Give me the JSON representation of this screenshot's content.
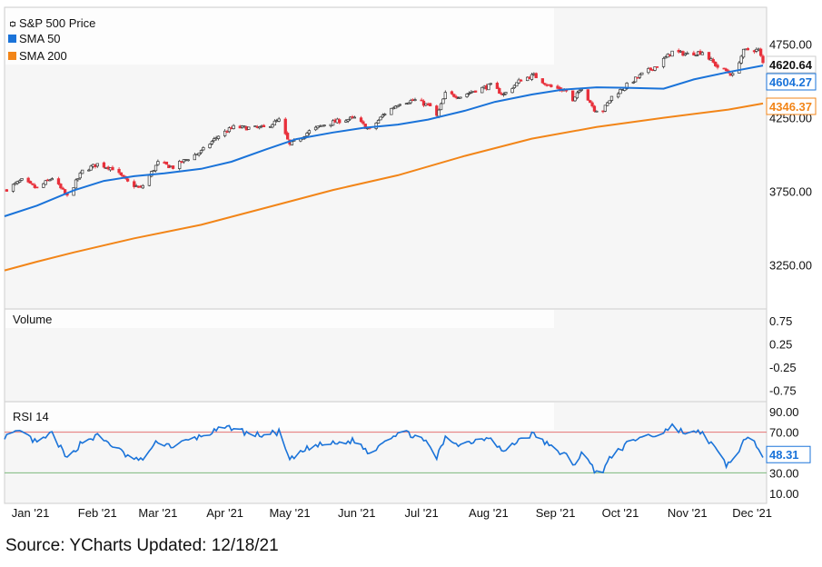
{
  "legend": {
    "price_label": "S&P 500 Price",
    "sma50_label": "SMA 50",
    "sma200_label": "SMA 200"
  },
  "source_text": "Source: YCharts Updated: 12/18/21",
  "colors": {
    "sma50": "#1a73d9",
    "sma200": "#f28518",
    "candle_up": "#333333",
    "candle_down": "#e8303b",
    "rsi_line": "#1a73d9",
    "rsi_overbought": "#e57373",
    "rsi_oversold": "#7cb87c"
  },
  "chart_data": [
    {
      "type": "candlestick",
      "title": "S&P 500 Price",
      "ylim": [
        2950,
        5000
      ],
      "y_ticks": [
        "4750.00",
        "4250.00",
        "3750.00",
        "3250.00"
      ],
      "y_tick_values": [
        4750,
        4250,
        3750,
        3250
      ],
      "x_ticks": [
        "Jan '21",
        "Feb '21",
        "Mar '21",
        "Apr '21",
        "May '21",
        "Jun '21",
        "Jul '21",
        "Aug '21",
        "Sep '21",
        "Oct '21",
        "Nov '21",
        "Dec '21"
      ],
      "last_values": {
        "price": "4620.64",
        "sma50": "4604.27",
        "sma200": "4346.37"
      },
      "price_path": [
        [
          "2020-12-31",
          3756
        ],
        [
          "2021-01-08",
          3824
        ],
        [
          "2021-01-15",
          3768
        ],
        [
          "2021-01-22",
          3841
        ],
        [
          "2021-01-29",
          3714
        ],
        [
          "2021-02-05",
          3886
        ],
        [
          "2021-02-12",
          3934
        ],
        [
          "2021-02-19",
          3906
        ],
        [
          "2021-02-26",
          3811
        ],
        [
          "2021-03-04",
          3768
        ],
        [
          "2021-03-12",
          3943
        ],
        [
          "2021-03-19",
          3913
        ],
        [
          "2021-03-26",
          3974
        ],
        [
          "2021-04-01",
          4019
        ],
        [
          "2021-04-09",
          4128
        ],
        [
          "2021-04-16",
          4185
        ],
        [
          "2021-04-23",
          4180
        ],
        [
          "2021-04-30",
          4181
        ],
        [
          "2021-05-07",
          4232
        ],
        [
          "2021-05-12",
          4063
        ],
        [
          "2021-05-21",
          4156
        ],
        [
          "2021-05-28",
          4204
        ],
        [
          "2021-06-04",
          4229
        ],
        [
          "2021-06-11",
          4247
        ],
        [
          "2021-06-18",
          4166
        ],
        [
          "2021-06-25",
          4280
        ],
        [
          "2021-07-02",
          4352
        ],
        [
          "2021-07-09",
          4369
        ],
        [
          "2021-07-16",
          4327
        ],
        [
          "2021-07-19",
          4258
        ],
        [
          "2021-07-23",
          4411
        ],
        [
          "2021-07-30",
          4395
        ],
        [
          "2021-08-06",
          4437
        ],
        [
          "2021-08-13",
          4468
        ],
        [
          "2021-08-19",
          4406
        ],
        [
          "2021-08-27",
          4509
        ],
        [
          "2021-09-02",
          4537
        ],
        [
          "2021-09-10",
          4458
        ],
        [
          "2021-09-17",
          4432
        ],
        [
          "2021-09-20",
          4358
        ],
        [
          "2021-09-24",
          4455
        ],
        [
          "2021-09-30",
          4307
        ],
        [
          "2021-10-04",
          4300
        ],
        [
          "2021-10-08",
          4391
        ],
        [
          "2021-10-15",
          4471
        ],
        [
          "2021-10-22",
          4544
        ],
        [
          "2021-10-29",
          4605
        ],
        [
          "2021-11-05",
          4697
        ],
        [
          "2021-11-12",
          4682
        ],
        [
          "2021-11-19",
          4697
        ],
        [
          "2021-11-26",
          4594
        ],
        [
          "2021-11-30",
          4567
        ],
        [
          "2021-12-03",
          4538
        ],
        [
          "2021-12-08",
          4701
        ],
        [
          "2021-12-10",
          4712
        ],
        [
          "2021-12-15",
          4709
        ],
        [
          "2021-12-17",
          4621
        ]
      ],
      "sma50_path": [
        [
          "2020-12-31",
          3580
        ],
        [
          "2021-01-15",
          3652
        ],
        [
          "2021-02-01",
          3755
        ],
        [
          "2021-02-15",
          3820
        ],
        [
          "2021-03-01",
          3852
        ],
        [
          "2021-03-15",
          3871
        ],
        [
          "2021-04-01",
          3902
        ],
        [
          "2021-04-15",
          3950
        ],
        [
          "2021-05-01",
          4034
        ],
        [
          "2021-05-15",
          4104
        ],
        [
          "2021-06-01",
          4149
        ],
        [
          "2021-06-15",
          4180
        ],
        [
          "2021-07-01",
          4203
        ],
        [
          "2021-07-15",
          4237
        ],
        [
          "2021-08-01",
          4297
        ],
        [
          "2021-08-15",
          4357
        ],
        [
          "2021-09-01",
          4407
        ],
        [
          "2021-09-15",
          4440
        ],
        [
          "2021-10-01",
          4456
        ],
        [
          "2021-10-15",
          4453
        ],
        [
          "2021-11-01",
          4447
        ],
        [
          "2021-11-15",
          4510
        ],
        [
          "2021-12-01",
          4560
        ],
        [
          "2021-12-17",
          4604
        ]
      ],
      "sma200_path": [
        [
          "2020-12-31",
          3212
        ],
        [
          "2021-01-15",
          3271
        ],
        [
          "2021-02-01",
          3334
        ],
        [
          "2021-03-01",
          3430
        ],
        [
          "2021-04-01",
          3522
        ],
        [
          "2021-05-01",
          3638
        ],
        [
          "2021-06-01",
          3758
        ],
        [
          "2021-07-01",
          3858
        ],
        [
          "2021-08-01",
          3990
        ],
        [
          "2021-09-01",
          4107
        ],
        [
          "2021-10-01",
          4186
        ],
        [
          "2021-11-01",
          4249
        ],
        [
          "2021-12-01",
          4305
        ],
        [
          "2021-12-17",
          4346
        ]
      ]
    },
    {
      "type": "bar",
      "title": "Volume",
      "ylim": [
        -1,
        1
      ],
      "y_ticks": [
        "0.75",
        "0.25",
        "-0.25",
        "-0.75"
      ],
      "y_tick_values": [
        0.75,
        0.25,
        -0.25,
        -0.75
      ],
      "values": []
    },
    {
      "type": "line",
      "title": "RSI 14",
      "ylim": [
        0,
        100
      ],
      "y_ticks": [
        "90.00",
        "70.00",
        "50.00",
        "30.00",
        "10.00"
      ],
      "y_tick_values": [
        90,
        70,
        50,
        30,
        10
      ],
      "reference_levels": [
        70,
        30
      ],
      "last_value": "48.31",
      "series": [
        [
          "2020-12-31",
          66
        ],
        [
          "2021-01-08",
          70
        ],
        [
          "2021-01-15",
          59
        ],
        [
          "2021-01-22",
          69
        ],
        [
          "2021-01-29",
          43
        ],
        [
          "2021-02-05",
          61
        ],
        [
          "2021-02-12",
          66
        ],
        [
          "2021-02-19",
          57
        ],
        [
          "2021-02-26",
          46
        ],
        [
          "2021-03-04",
          42
        ],
        [
          "2021-03-12",
          61
        ],
        [
          "2021-03-19",
          56
        ],
        [
          "2021-03-26",
          62
        ],
        [
          "2021-04-01",
          66
        ],
        [
          "2021-04-09",
          72
        ],
        [
          "2021-04-16",
          75
        ],
        [
          "2021-04-23",
          68
        ],
        [
          "2021-04-30",
          67
        ],
        [
          "2021-05-07",
          70
        ],
        [
          "2021-05-12",
          42
        ],
        [
          "2021-05-21",
          55
        ],
        [
          "2021-05-28",
          58
        ],
        [
          "2021-06-04",
          59
        ],
        [
          "2021-06-11",
          62
        ],
        [
          "2021-06-18",
          49
        ],
        [
          "2021-06-25",
          63
        ],
        [
          "2021-07-02",
          70
        ],
        [
          "2021-07-09",
          67
        ],
        [
          "2021-07-16",
          56
        ],
        [
          "2021-07-19",
          45
        ],
        [
          "2021-07-23",
          64
        ],
        [
          "2021-07-30",
          58
        ],
        [
          "2021-08-06",
          62
        ],
        [
          "2021-08-13",
          66
        ],
        [
          "2021-08-19",
          50
        ],
        [
          "2021-08-27",
          64
        ],
        [
          "2021-09-02",
          68
        ],
        [
          "2021-09-10",
          55
        ],
        [
          "2021-09-17",
          47
        ],
        [
          "2021-09-20",
          36
        ],
        [
          "2021-09-24",
          50
        ],
        [
          "2021-09-30",
          33
        ],
        [
          "2021-10-04",
          32
        ],
        [
          "2021-10-08",
          47
        ],
        [
          "2021-10-15",
          58
        ],
        [
          "2021-10-22",
          66
        ],
        [
          "2021-10-29",
          67
        ],
        [
          "2021-11-05",
          76
        ],
        [
          "2021-11-12",
          68
        ],
        [
          "2021-11-19",
          70
        ],
        [
          "2021-11-26",
          50
        ],
        [
          "2021-11-30",
          38
        ],
        [
          "2021-12-03",
          42
        ],
        [
          "2021-12-08",
          61
        ],
        [
          "2021-12-10",
          62
        ],
        [
          "2021-12-15",
          56
        ],
        [
          "2021-12-17",
          48
        ]
      ]
    }
  ]
}
